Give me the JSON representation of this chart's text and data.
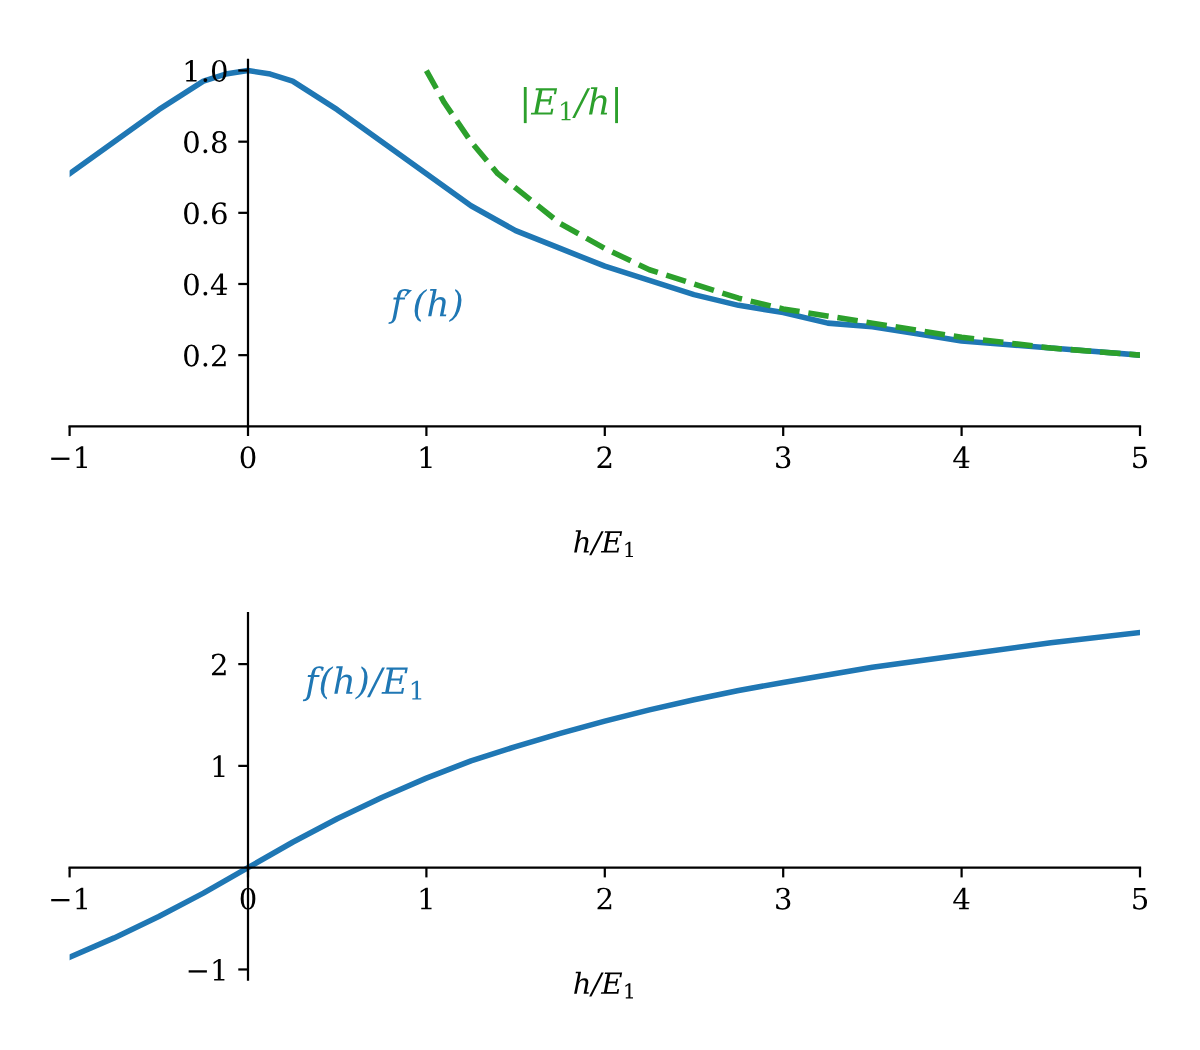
{
  "chart_data": [
    {
      "type": "line",
      "xlabel": "h/E$_{1}$",
      "xlim": [
        -1,
        5
      ],
      "ylim": [
        0,
        1.03
      ],
      "xticks": [
        {
          "value": -1,
          "label": "−1"
        },
        0,
        1,
        2,
        3,
        4,
        5
      ],
      "yticks": [
        {
          "value": 0.2,
          "label": "0.2"
        },
        {
          "value": 0.4,
          "label": "0.4"
        },
        {
          "value": 0.6,
          "label": "0.6"
        },
        {
          "value": 0.8,
          "label": "0.8"
        },
        {
          "value": 1.0,
          "label": "1.0"
        }
      ],
      "grid": false,
      "legend": false,
      "line_style": "solid",
      "series": [
        {
          "name": "f′(h)",
          "color": "#1f77b4",
          "x": [
            -1,
            -0.75,
            -0.5,
            -0.25,
            -0.125,
            0,
            0.125,
            0.25,
            0.5,
            0.75,
            1,
            1.25,
            1.5,
            1.75,
            2,
            2.25,
            2.5,
            2.75,
            3,
            3.25,
            3.5,
            3.75,
            4,
            4.25,
            4.5,
            4.75,
            5
          ],
          "values": [
            0.71,
            0.8,
            0.89,
            0.97,
            0.99,
            1.0,
            0.99,
            0.97,
            0.89,
            0.8,
            0.71,
            0.62,
            0.55,
            0.5,
            0.45,
            0.41,
            0.37,
            0.34,
            0.32,
            0.29,
            0.28,
            0.26,
            0.24,
            0.23,
            0.22,
            0.21,
            0.2
          ]
        },
        {
          "name": "|E$_{1}$/h|",
          "color": "#2ca02c",
          "line_style": "dashed",
          "x": [
            1,
            1.1,
            1.25,
            1.4,
            1.5,
            1.75,
            2,
            2.25,
            2.5,
            2.75,
            3,
            3.5,
            4,
            4.5,
            5
          ],
          "values": [
            1.0,
            0.91,
            0.8,
            0.71,
            0.67,
            0.57,
            0.5,
            0.44,
            0.4,
            0.36,
            0.33,
            0.29,
            0.25,
            0.22,
            0.2
          ]
        }
      ]
    },
    {
      "type": "line",
      "xlabel": "h/E$_{1}$",
      "xlim": [
        -1,
        5
      ],
      "ylim": [
        -1.1,
        2.5
      ],
      "xticks": [
        {
          "value": -1,
          "label": "−1"
        },
        0,
        1,
        2,
        3,
        4,
        5
      ],
      "yticks": [
        {
          "value": -1,
          "label": "−1"
        },
        1,
        2
      ],
      "grid": false,
      "legend": false,
      "line_style": "solid",
      "series": [
        {
          "name": "f(h)/E$_{1}$",
          "color": "#1f77b4",
          "x": [
            -1,
            -0.75,
            -0.5,
            -0.25,
            0,
            0.25,
            0.5,
            0.75,
            1,
            1.25,
            1.5,
            1.75,
            2,
            2.25,
            2.5,
            2.75,
            3,
            3.5,
            4,
            4.5,
            5
          ],
          "values": [
            -0.88,
            -0.69,
            -0.48,
            -0.25,
            0,
            0.25,
            0.48,
            0.69,
            0.88,
            1.05,
            1.19,
            1.32,
            1.44,
            1.55,
            1.65,
            1.74,
            1.82,
            1.97,
            2.09,
            2.21,
            2.31
          ]
        }
      ]
    }
  ]
}
